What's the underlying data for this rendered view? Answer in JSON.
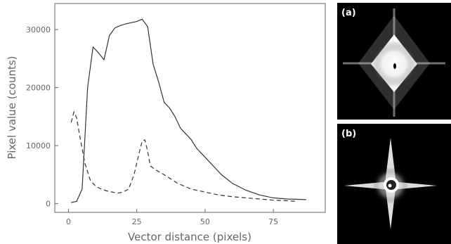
{
  "chart_data": {
    "type": "line",
    "title": "",
    "xlabel": "Vector distance (pixels)",
    "ylabel": "Pixel value (counts)",
    "xlim": [
      -5,
      94
    ],
    "ylim": [
      -1500,
      34500
    ],
    "x_ticks": [
      0,
      25,
      50,
      75
    ],
    "y_ticks": [
      0,
      10000,
      20000,
      30000
    ],
    "grid": false,
    "series": [
      {
        "style": "solid",
        "x": [
          1,
          3,
          5,
          7,
          9,
          11,
          13,
          15,
          17,
          19,
          21,
          23,
          25,
          27,
          29,
          31,
          33,
          35,
          37,
          39,
          41,
          43,
          45,
          47,
          50,
          53,
          56,
          60,
          65,
          70,
          75,
          80,
          87
        ],
        "y": [
          200,
          400,
          2500,
          20000,
          27000,
          26000,
          24800,
          29000,
          30300,
          30700,
          31000,
          31200,
          31400,
          31800,
          30500,
          24000,
          21000,
          17500,
          16500,
          15000,
          13000,
          12000,
          11000,
          9500,
          8000,
          6500,
          5000,
          3500,
          2300,
          1500,
          1000,
          800,
          700
        ]
      },
      {
        "style": "dashed",
        "x": [
          1,
          2,
          3,
          4,
          5,
          6,
          8,
          10,
          12,
          14,
          16,
          18,
          20,
          22,
          24,
          26,
          27,
          28,
          29,
          30,
          32,
          35,
          40,
          45,
          50,
          55,
          60,
          65,
          70,
          75,
          80,
          83
        ],
        "y": [
          14000,
          15800,
          14800,
          12000,
          9500,
          7000,
          4000,
          3000,
          2500,
          2200,
          2000,
          1800,
          2000,
          2500,
          5000,
          9000,
          10800,
          11000,
          9000,
          6500,
          5800,
          5000,
          3500,
          2500,
          2000,
          1500,
          1200,
          1000,
          800,
          600,
          500,
          400
        ]
      }
    ]
  },
  "panels": [
    {
      "label": "(a)"
    },
    {
      "label": "(b)"
    }
  ],
  "colors": {
    "line": "#333333",
    "axis": "#666666",
    "panel_bg": "#000000"
  }
}
